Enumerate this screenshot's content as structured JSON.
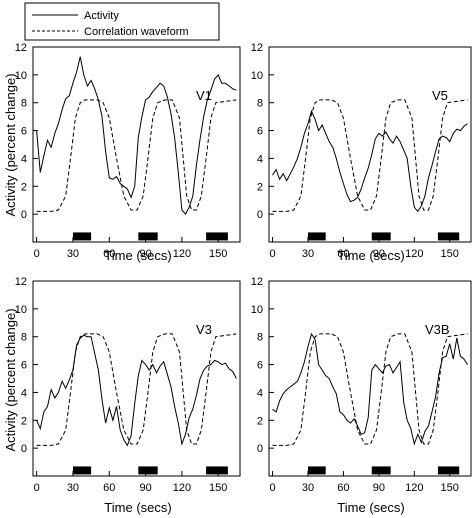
{
  "figure": {
    "xlabel": "Time  (secs)",
    "ylabel": "Activity  (percent change)",
    "legend": {
      "activity_label": "Activity",
      "correlation_label": "Correlation  waveform"
    }
  },
  "chart_data": [
    {
      "type": "line",
      "title": "V1",
      "xlabel": "Time  (secs)",
      "ylabel": "Activity  (percent change)",
      "xlim": [
        -3,
        168
      ],
      "ylim": [
        -2,
        12
      ],
      "xticks": [
        0,
        30,
        60,
        90,
        120,
        150
      ],
      "yticks": [
        0,
        2,
        4,
        6,
        8,
        10,
        12
      ],
      "stimulus_blocks": [
        [
          30,
          45
        ],
        [
          84,
          100
        ],
        [
          140,
          158
        ]
      ],
      "series": [
        {
          "name": "Activity",
          "style": "solid",
          "x": [
            0,
            3,
            6,
            9,
            12,
            15,
            18,
            21,
            24,
            27,
            30,
            33,
            36,
            39,
            42,
            45,
            48,
            51,
            54,
            57,
            60,
            63,
            66,
            69,
            72,
            75,
            78,
            81,
            84,
            87,
            90,
            93,
            96,
            99,
            102,
            105,
            108,
            111,
            114,
            117,
            120,
            123,
            126,
            129,
            132,
            135,
            138,
            141,
            144,
            147,
            150,
            153,
            156,
            159,
            162,
            165
          ],
          "y": [
            6.0,
            3.0,
            4.2,
            5.3,
            4.8,
            5.8,
            6.5,
            7.5,
            8.3,
            8.5,
            9.4,
            10.2,
            11.3,
            10.0,
            9.2,
            9.6,
            9.0,
            8.2,
            7.0,
            4.5,
            2.6,
            2.5,
            2.7,
            2.2,
            2.0,
            1.8,
            1.2,
            2.0,
            5.5,
            7.0,
            8.2,
            8.4,
            8.8,
            9.1,
            9.4,
            9.2,
            8.4,
            7.2,
            5.5,
            3.0,
            0.3,
            0.0,
            0.5,
            1.3,
            3.5,
            5.4,
            7.0,
            8.2,
            8.9,
            9.7,
            10.0,
            9.4,
            9.4,
            9.2,
            9.0,
            8.9
          ]
        },
        {
          "name": "Correlation  waveform",
          "style": "dashed",
          "x": [
            0,
            12,
            18,
            24,
            28,
            32,
            36,
            40,
            46,
            50,
            55,
            60,
            66,
            72,
            78,
            83,
            88,
            92,
            96,
            100,
            106,
            112,
            118,
            124,
            128,
            132,
            136,
            140,
            144,
            148,
            165
          ],
          "y": [
            0.2,
            0.2,
            0.3,
            1.3,
            4.0,
            6.9,
            8.0,
            8.2,
            8.2,
            8.2,
            8.0,
            6.9,
            4.0,
            1.3,
            0.3,
            0.3,
            1.3,
            4.0,
            6.9,
            8.0,
            8.2,
            8.2,
            6.9,
            1.3,
            0.3,
            0.3,
            1.3,
            4.0,
            6.9,
            8.0,
            8.2
          ]
        }
      ]
    },
    {
      "type": "line",
      "title": "V5",
      "xlabel": "Time  (secs)",
      "ylabel": "Activity  (percent change)",
      "xlim": [
        -3,
        168
      ],
      "ylim": [
        -2,
        12
      ],
      "xticks": [
        0,
        30,
        60,
        90,
        120,
        150
      ],
      "yticks": [
        0,
        2,
        4,
        6,
        8,
        10,
        12
      ],
      "stimulus_blocks": [
        [
          30,
          45
        ],
        [
          84,
          100
        ],
        [
          140,
          158
        ]
      ],
      "series": [
        {
          "name": "Activity",
          "style": "solid",
          "x": [
            0,
            3,
            6,
            9,
            12,
            15,
            18,
            21,
            24,
            27,
            30,
            33,
            36,
            39,
            42,
            45,
            48,
            51,
            54,
            57,
            60,
            63,
            66,
            69,
            72,
            75,
            78,
            81,
            84,
            87,
            90,
            93,
            96,
            99,
            102,
            105,
            108,
            111,
            114,
            117,
            120,
            123,
            126,
            129,
            132,
            135,
            138,
            141,
            144,
            147,
            150,
            153,
            156,
            159,
            162,
            165
          ],
          "y": [
            2.8,
            3.2,
            2.5,
            2.9,
            2.4,
            2.9,
            3.4,
            4.0,
            4.8,
            5.8,
            6.5,
            7.4,
            6.8,
            6.0,
            6.4,
            5.8,
            5.2,
            4.8,
            4.0,
            3.0,
            2.2,
            1.4,
            0.9,
            1.0,
            1.2,
            1.8,
            2.6,
            3.3,
            4.3,
            5.4,
            5.8,
            5.6,
            5.9,
            5.4,
            5.1,
            5.6,
            5.2,
            4.6,
            4.0,
            2.0,
            0.5,
            0.2,
            0.6,
            1.3,
            2.6,
            3.5,
            4.5,
            5.4,
            5.6,
            5.5,
            5.2,
            5.8,
            6.1,
            6.0,
            6.3,
            6.5
          ]
        },
        {
          "name": "Correlation  waveform",
          "style": "dashed",
          "x": [
            0,
            12,
            18,
            24,
            28,
            32,
            36,
            40,
            46,
            50,
            55,
            60,
            66,
            72,
            78,
            83,
            88,
            92,
            96,
            100,
            106,
            112,
            118,
            124,
            128,
            132,
            136,
            140,
            144,
            148,
            165
          ],
          "y": [
            0.2,
            0.2,
            0.3,
            1.3,
            4.0,
            6.9,
            8.0,
            8.2,
            8.2,
            8.2,
            8.0,
            6.9,
            4.0,
            1.3,
            0.3,
            0.3,
            1.3,
            4.0,
            6.9,
            8.0,
            8.2,
            8.2,
            6.9,
            1.3,
            0.3,
            0.3,
            1.3,
            4.0,
            6.9,
            8.0,
            8.2
          ]
        }
      ]
    },
    {
      "type": "line",
      "title": "V3",
      "xlabel": "Time  (secs)",
      "ylabel": "Activity  (percent change)",
      "xlim": [
        -3,
        168
      ],
      "ylim": [
        -2,
        12
      ],
      "xticks": [
        0,
        30,
        60,
        90,
        120,
        150
      ],
      "yticks": [
        0,
        2,
        4,
        6,
        8,
        10,
        12
      ],
      "stimulus_blocks": [
        [
          30,
          45
        ],
        [
          84,
          100
        ],
        [
          140,
          158
        ]
      ],
      "series": [
        {
          "name": "Activity",
          "style": "solid",
          "x": [
            0,
            3,
            6,
            9,
            12,
            15,
            18,
            21,
            24,
            27,
            30,
            33,
            36,
            39,
            42,
            45,
            48,
            51,
            54,
            57,
            60,
            63,
            66,
            69,
            72,
            75,
            78,
            81,
            84,
            87,
            90,
            93,
            96,
            99,
            102,
            105,
            108,
            111,
            114,
            117,
            120,
            123,
            126,
            129,
            132,
            135,
            138,
            141,
            144,
            147,
            150,
            153,
            156,
            159,
            162,
            165
          ],
          "y": [
            2.0,
            1.4,
            2.6,
            3.0,
            4.2,
            3.6,
            4.0,
            4.8,
            4.3,
            4.9,
            5.6,
            7.4,
            7.9,
            8.1,
            8.0,
            8.0,
            6.8,
            5.6,
            3.5,
            1.8,
            2.9,
            2.0,
            3.0,
            1.3,
            0.6,
            0.2,
            0.9,
            3.2,
            5.2,
            6.3,
            6.0,
            5.6,
            6.0,
            5.4,
            5.9,
            6.2,
            5.3,
            4.4,
            3.0,
            1.8,
            0.3,
            1.0,
            2.2,
            2.8,
            3.8,
            5.0,
            5.6,
            5.9,
            6.0,
            6.3,
            6.2,
            6.0,
            6.1,
            5.7,
            5.5,
            5.0
          ]
        },
        {
          "name": "Correlation  waveform",
          "style": "dashed",
          "x": [
            0,
            12,
            18,
            24,
            28,
            32,
            36,
            40,
            46,
            50,
            55,
            60,
            66,
            72,
            78,
            83,
            88,
            92,
            96,
            100,
            106,
            112,
            118,
            124,
            128,
            132,
            136,
            140,
            144,
            148,
            165
          ],
          "y": [
            0.2,
            0.2,
            0.3,
            1.3,
            4.0,
            6.9,
            8.0,
            8.2,
            8.2,
            8.2,
            8.0,
            6.9,
            4.0,
            1.3,
            0.3,
            0.3,
            1.3,
            4.0,
            6.9,
            8.0,
            8.2,
            8.2,
            6.9,
            1.3,
            0.3,
            0.3,
            1.3,
            4.0,
            6.9,
            8.0,
            8.2
          ]
        }
      ]
    },
    {
      "type": "line",
      "title": "V3B",
      "xlabel": "Time  (secs)",
      "ylabel": "Activity  (percent change)",
      "xlim": [
        -3,
        168
      ],
      "ylim": [
        -2,
        12
      ],
      "xticks": [
        0,
        30,
        60,
        90,
        120,
        150
      ],
      "yticks": [
        0,
        2,
        4,
        6,
        8,
        10,
        12
      ],
      "stimulus_blocks": [
        [
          30,
          45
        ],
        [
          84,
          100
        ],
        [
          140,
          158
        ]
      ],
      "series": [
        {
          "name": "Activity",
          "style": "solid",
          "x": [
            0,
            3,
            6,
            9,
            12,
            15,
            18,
            21,
            24,
            27,
            30,
            33,
            36,
            39,
            42,
            45,
            48,
            51,
            54,
            57,
            60,
            63,
            66,
            69,
            72,
            75,
            78,
            81,
            84,
            87,
            90,
            93,
            96,
            99,
            102,
            105,
            108,
            111,
            114,
            117,
            120,
            123,
            126,
            129,
            132,
            135,
            138,
            141,
            144,
            147,
            150,
            153,
            156,
            159,
            162,
            165
          ],
          "y": [
            2.8,
            2.6,
            3.4,
            3.9,
            4.2,
            4.4,
            4.6,
            4.8,
            5.4,
            6.2,
            7.3,
            8.2,
            7.8,
            6.0,
            5.6,
            5.2,
            5.0,
            4.4,
            3.9,
            2.6,
            2.4,
            2.0,
            1.8,
            2.1,
            1.6,
            1.0,
            1.1,
            2.2,
            5.6,
            6.0,
            5.7,
            5.4,
            5.9,
            6.0,
            5.4,
            5.8,
            6.2,
            3.3,
            2.0,
            1.4,
            0.3,
            1.0,
            0.4,
            1.2,
            1.6,
            2.6,
            3.7,
            5.4,
            6.5,
            6.6,
            7.5,
            6.4,
            7.9,
            6.6,
            6.4,
            6.0
          ]
        },
        {
          "name": "Correlation  waveform",
          "style": "dashed",
          "x": [
            0,
            12,
            18,
            24,
            28,
            32,
            36,
            40,
            46,
            50,
            55,
            60,
            66,
            72,
            78,
            83,
            88,
            92,
            96,
            100,
            106,
            112,
            118,
            124,
            128,
            132,
            136,
            140,
            144,
            148,
            165
          ],
          "y": [
            0.2,
            0.2,
            0.3,
            1.3,
            4.0,
            6.9,
            8.0,
            8.2,
            8.2,
            8.2,
            8.0,
            6.9,
            4.0,
            1.3,
            0.3,
            0.3,
            1.3,
            4.0,
            6.9,
            8.0,
            8.2,
            8.2,
            6.9,
            1.3,
            0.3,
            0.3,
            1.3,
            4.0,
            6.9,
            8.0,
            8.2
          ]
        }
      ]
    }
  ]
}
